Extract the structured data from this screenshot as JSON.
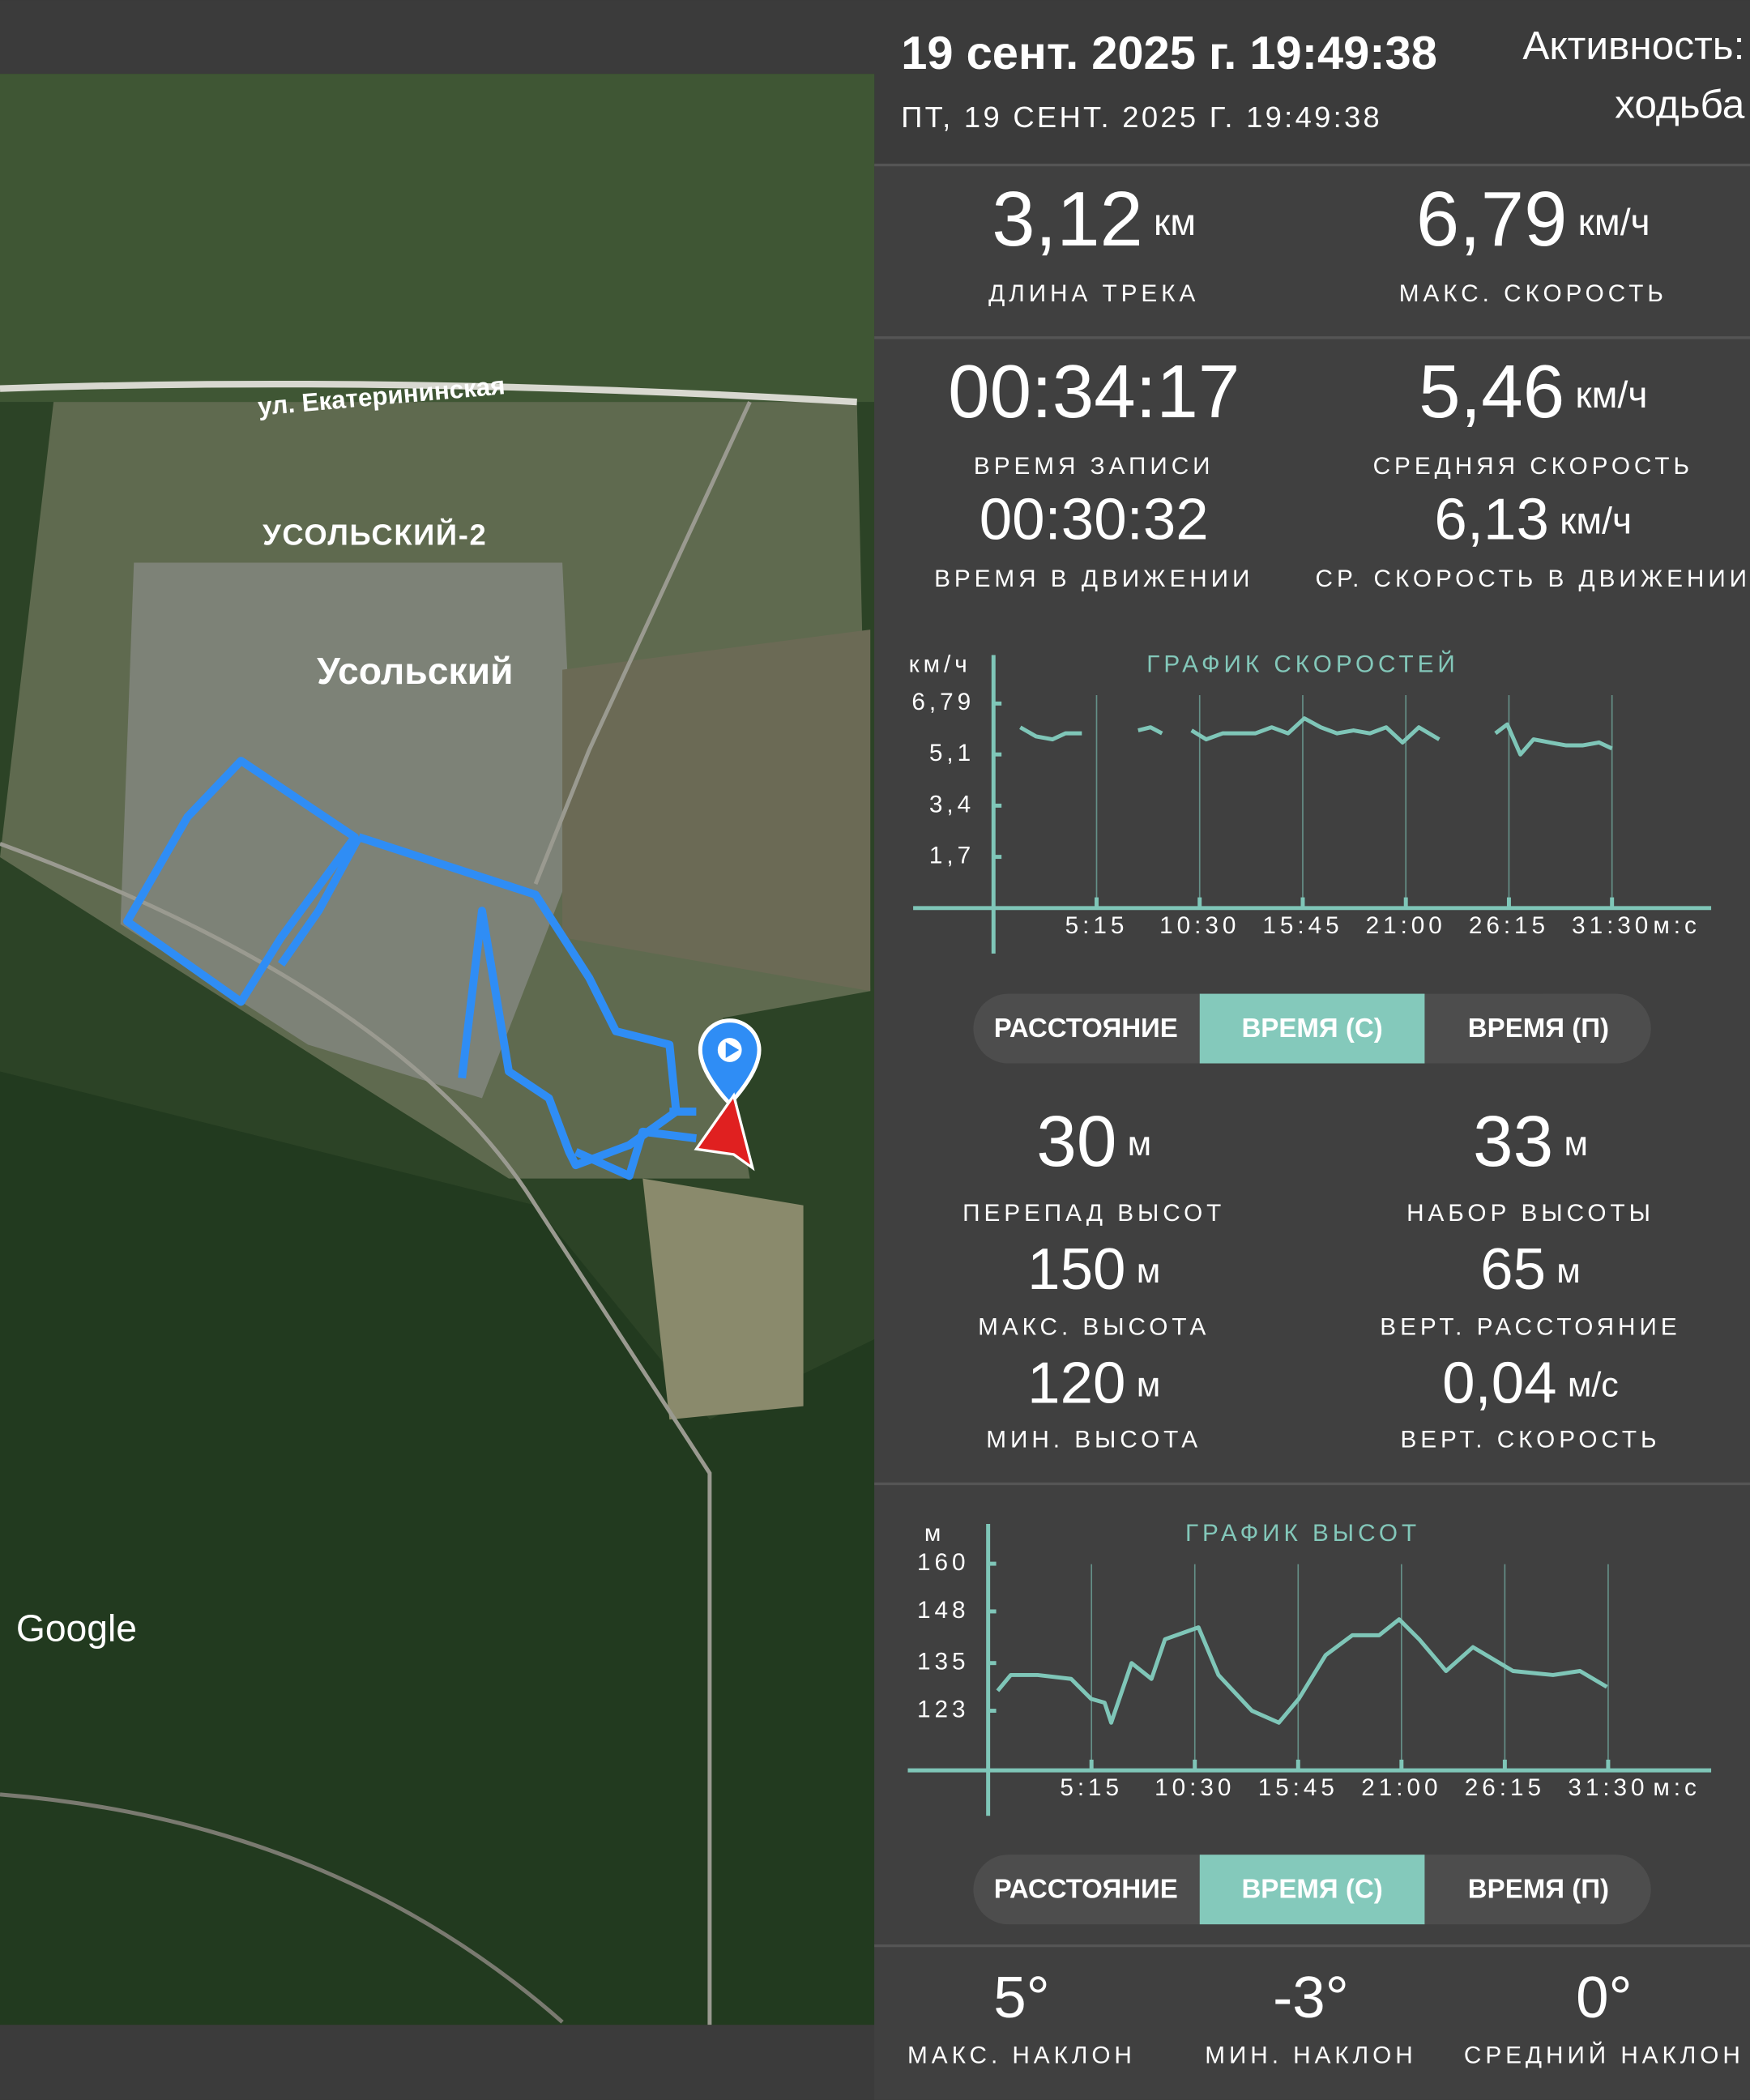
{
  "header": {
    "title": "19 сент. 2025 г. 19:49:38",
    "subtitle": "ПТ, 19 СЕНТ. 2025 Г. 19:49:38",
    "activity_label": "Активность:",
    "activity": "ходьба"
  },
  "map": {
    "street": "ул. Екатерининская",
    "district_1": "УСОЛЬСКИЙ-2",
    "district_2": "Усольский",
    "attribution": "Google"
  },
  "track_stats": [
    {
      "value": "3,12",
      "unit": "км",
      "label": "ДЛИНА ТРЕКА"
    },
    {
      "value": "6,79",
      "unit": "км/ч",
      "label": "МАКС. СКОРОСТЬ"
    },
    {
      "value": "00:34:17",
      "unit": "",
      "label": "ВРЕМЯ ЗАПИСИ"
    },
    {
      "value": "5,46",
      "unit": "км/ч",
      "label": "СРЕДНЯЯ СКОРОСТЬ"
    },
    {
      "value": "00:30:32",
      "unit": "",
      "label": "ВРЕМЯ В ДВИЖЕНИИ"
    },
    {
      "value": "6,13",
      "unit": "км/ч",
      "label": "СР. СКОРОСТЬ В ДВИЖЕНИИ"
    }
  ],
  "chart_data": [
    {
      "type": "line",
      "title": "ГРАФИК СКОРОСТЕЙ",
      "ylabel": "км/ч",
      "xlabel": "м:с",
      "grid": true,
      "xlim": [
        0,
        2193
      ],
      "ylim": [
        0,
        8.4
      ],
      "xticks": [
        {
          "value": 315,
          "label": "5:15"
        },
        {
          "value": 630,
          "label": "10:30"
        },
        {
          "value": 945,
          "label": "15:45"
        },
        {
          "value": 1260,
          "label": "21:00"
        },
        {
          "value": 1575,
          "label": "26:15"
        },
        {
          "value": 1890,
          "label": "31:30"
        }
      ],
      "yticks": [
        {
          "value": 1.7,
          "label": "1,7"
        },
        {
          "value": 3.4,
          "label": "3,4"
        },
        {
          "value": 5.1,
          "label": "5,1"
        },
        {
          "value": 6.79,
          "label": "6,79"
        }
      ],
      "x": [
        82,
        130,
        180,
        220,
        270,
        330,
        442,
        480,
        515,
        560,
        605,
        650,
        700,
        750,
        800,
        850,
        900,
        950,
        1000,
        1050,
        1100,
        1150,
        1200,
        1250,
        1300,
        1362,
        1450,
        1534,
        1570,
        1610,
        1650,
        1700,
        1750,
        1800,
        1850,
        1890
      ],
      "series": [
        {
          "name": "speed",
          "color": "#7fc6b8",
          "values": [
            6.0,
            5.7,
            5.6,
            5.8,
            5.8,
            null,
            5.9,
            6.0,
            5.8,
            null,
            5.9,
            5.6,
            5.8,
            5.8,
            5.8,
            6.0,
            5.8,
            6.3,
            6.0,
            5.8,
            5.9,
            5.8,
            6.0,
            5.5,
            6.0,
            5.6,
            null,
            5.8,
            6.1,
            5.1,
            5.6,
            5.5,
            5.4,
            5.4,
            5.5,
            5.3
          ]
        }
      ]
    },
    {
      "type": "line",
      "title": "ГРАФИК ВЫСОТ",
      "ylabel": "м",
      "xlabel": "м:с",
      "grid": true,
      "xlim": [
        0,
        2204
      ],
      "ylim": [
        108,
        170
      ],
      "xticks": [
        {
          "value": 315,
          "label": "5:15"
        },
        {
          "value": 630,
          "label": "10:30"
        },
        {
          "value": 945,
          "label": "15:45"
        },
        {
          "value": 1260,
          "label": "21:00"
        },
        {
          "value": 1575,
          "label": "26:15"
        },
        {
          "value": 1890,
          "label": "31:30"
        }
      ],
      "yticks": [
        123,
        135,
        148,
        160
      ],
      "x": [
        29,
        69,
        151,
        253,
        314,
        355,
        375,
        437,
        498,
        539,
        641,
        702,
        804,
        886,
        947,
        1029,
        1110,
        1192,
        1253,
        1314,
        1396,
        1478,
        1600,
        1722,
        1804,
        1886
      ],
      "series": [
        {
          "name": "elevation",
          "color": "#7fc6b8",
          "values": [
            128,
            132,
            132,
            131,
            126,
            125,
            120,
            135,
            131,
            141,
            144,
            132,
            123,
            120,
            126,
            137,
            142,
            142,
            146,
            141,
            133,
            139,
            133,
            132,
            133,
            129
          ]
        }
      ]
    }
  ],
  "speed_controls": [
    "РАССТОЯНИЕ",
    "ВРЕМЯ (С)",
    "ВРЕМЯ (П)"
  ],
  "elevation_stats": [
    {
      "value": "30",
      "unit": "м",
      "label": "ПЕРЕПАД ВЫСОТ"
    },
    {
      "value": "33",
      "unit": "м",
      "label": "НАБОР ВЫСОТЫ"
    },
    {
      "value": "150",
      "unit": "м",
      "label": "МАКС. ВЫСОТА"
    },
    {
      "value": "65",
      "unit": "м",
      "label": "ВЕРТ. РАССТОЯНИЕ"
    },
    {
      "value": "120",
      "unit": "м",
      "label": "МИН. ВЫСОТА"
    },
    {
      "value": "0,04",
      "unit": "м/с",
      "label": "ВЕРТ. СКОРОСТЬ"
    }
  ],
  "elevation_controls": [
    "РАССТОЯНИЕ",
    "ВРЕМЯ (С)",
    "ВРЕМЯ (П)"
  ],
  "slope_stats": [
    {
      "value": "5°",
      "label": "МАКС. НАКЛОН"
    },
    {
      "value": "-3°",
      "label": "МИН. НАКЛОН"
    },
    {
      "value": "0°",
      "label": "СРЕДНИЙ НАКЛОН"
    }
  ]
}
